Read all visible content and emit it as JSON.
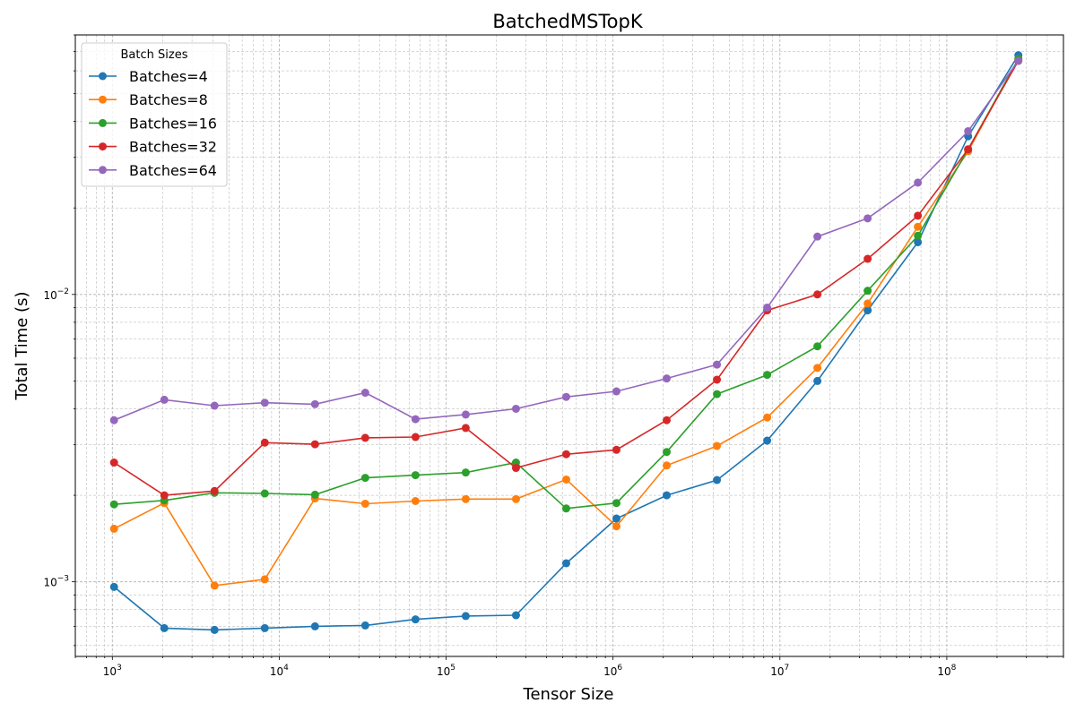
{
  "chart_data": {
    "type": "line",
    "title": "BatchedMSTopK",
    "xlabel": "Tensor Size",
    "ylabel": "Total Time (s)",
    "xscale": "log",
    "yscale": "log",
    "xlim": [
      600,
      500000000
    ],
    "ylim": [
      0.00055,
      0.08
    ],
    "grid": true,
    "legend": {
      "title": "Batch Sizes",
      "placement": "top-left"
    },
    "x_ticks": [
      {
        "value": 1000,
        "base": "10",
        "exp": "3"
      },
      {
        "value": 10000,
        "base": "10",
        "exp": "4"
      },
      {
        "value": 100000,
        "base": "10",
        "exp": "5"
      },
      {
        "value": 1000000,
        "base": "10",
        "exp": "6"
      },
      {
        "value": 10000000,
        "base": "10",
        "exp": "7"
      },
      {
        "value": 100000000,
        "base": "10",
        "exp": "8"
      }
    ],
    "y_ticks": [
      {
        "value": 0.001,
        "base": "10",
        "exp": "−3"
      },
      {
        "value": 0.01,
        "base": "10",
        "exp": "−2"
      }
    ],
    "x": [
      1024,
      2048,
      4096,
      8192,
      16384,
      32768,
      65536,
      131072,
      262144,
      524288,
      1048576,
      2097152,
      4194304,
      8388608,
      16777216,
      33554432,
      67108864,
      134217728,
      268435456
    ],
    "series": [
      {
        "name": "Batches=4",
        "color": "#1f77b4",
        "values": [
          0.00096,
          0.00069,
          0.00068,
          0.00069,
          0.0007,
          0.000705,
          0.00074,
          0.00076,
          0.000765,
          0.00116,
          0.00166,
          0.002,
          0.00226,
          0.0031,
          0.005,
          0.0088,
          0.0152,
          0.0355,
          0.068
        ]
      },
      {
        "name": "Batches=8",
        "color": "#ff7f0e",
        "values": [
          0.00153,
          0.00188,
          0.00097,
          0.00102,
          0.00195,
          0.00187,
          0.00191,
          0.00194,
          0.00194,
          0.00227,
          0.00156,
          0.00254,
          0.00297,
          0.00373,
          0.00555,
          0.0093,
          0.0172,
          0.0315,
          0.066
        ]
      },
      {
        "name": "Batches=16",
        "color": "#2ca02c",
        "values": [
          0.00186,
          0.00192,
          0.00204,
          0.00203,
          0.00201,
          0.0023,
          0.00235,
          0.0024,
          0.0026,
          0.0018,
          0.00188,
          0.00283,
          0.0045,
          0.00525,
          0.0066,
          0.0103,
          0.016,
          0.032,
          0.066
        ]
      },
      {
        "name": "Batches=32",
        "color": "#d62728",
        "values": [
          0.0026,
          0.002,
          0.00207,
          0.00305,
          0.00301,
          0.00317,
          0.00319,
          0.00343,
          0.00249,
          0.00278,
          0.00288,
          0.00365,
          0.00505,
          0.0088,
          0.01,
          0.0133,
          0.0188,
          0.032,
          0.065
        ]
      },
      {
        "name": "Batches=64",
        "color": "#9467bd",
        "values": [
          0.00365,
          0.0043,
          0.0041,
          0.0042,
          0.00415,
          0.00455,
          0.00368,
          0.00382,
          0.004,
          0.0044,
          0.0046,
          0.0051,
          0.0057,
          0.009,
          0.0159,
          0.0184,
          0.0245,
          0.037,
          0.065
        ]
      }
    ]
  }
}
